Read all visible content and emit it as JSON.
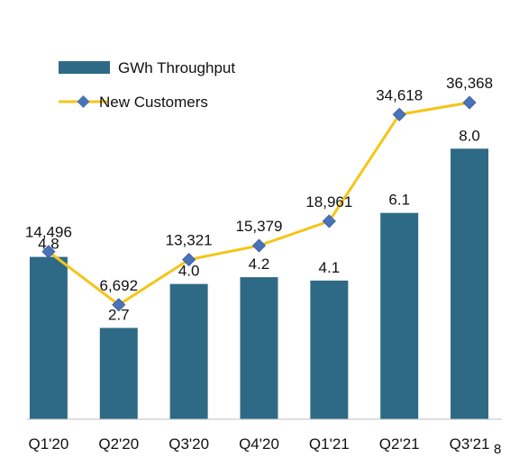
{
  "chart_data": {
    "type": "bar",
    "categories": [
      "Q1'20",
      "Q2'20",
      "Q3'20",
      "Q4'20",
      "Q1'21",
      "Q2'21",
      "Q3'21"
    ],
    "series": [
      {
        "name": "GWh Throughput",
        "type": "bar",
        "color": "#2e6a86",
        "values": [
          4.8,
          2.7,
          4.0,
          4.2,
          4.1,
          6.1,
          8.0
        ],
        "labels": [
          "4.8",
          "2.7",
          "4.0",
          "4.2",
          "4.1",
          "6.1",
          "8.0"
        ],
        "axis": "left"
      },
      {
        "name": "New Customers",
        "type": "line",
        "color": "#f5c518",
        "marker_color": "#4a72b8",
        "marker": "diamond",
        "values": [
          14496,
          6692,
          13321,
          15379,
          18961,
          34618,
          36368
        ],
        "labels": [
          "14,496",
          "6,692",
          "13,321",
          "15,379",
          "18,961",
          "34,618",
          "36,368"
        ],
        "axis": "right"
      }
    ],
    "ylim_left": [
      0,
      10.8
    ],
    "ylim_right": [
      -10100,
      43500
    ],
    "grid": false,
    "legend": "top-left"
  },
  "page_number": "8"
}
